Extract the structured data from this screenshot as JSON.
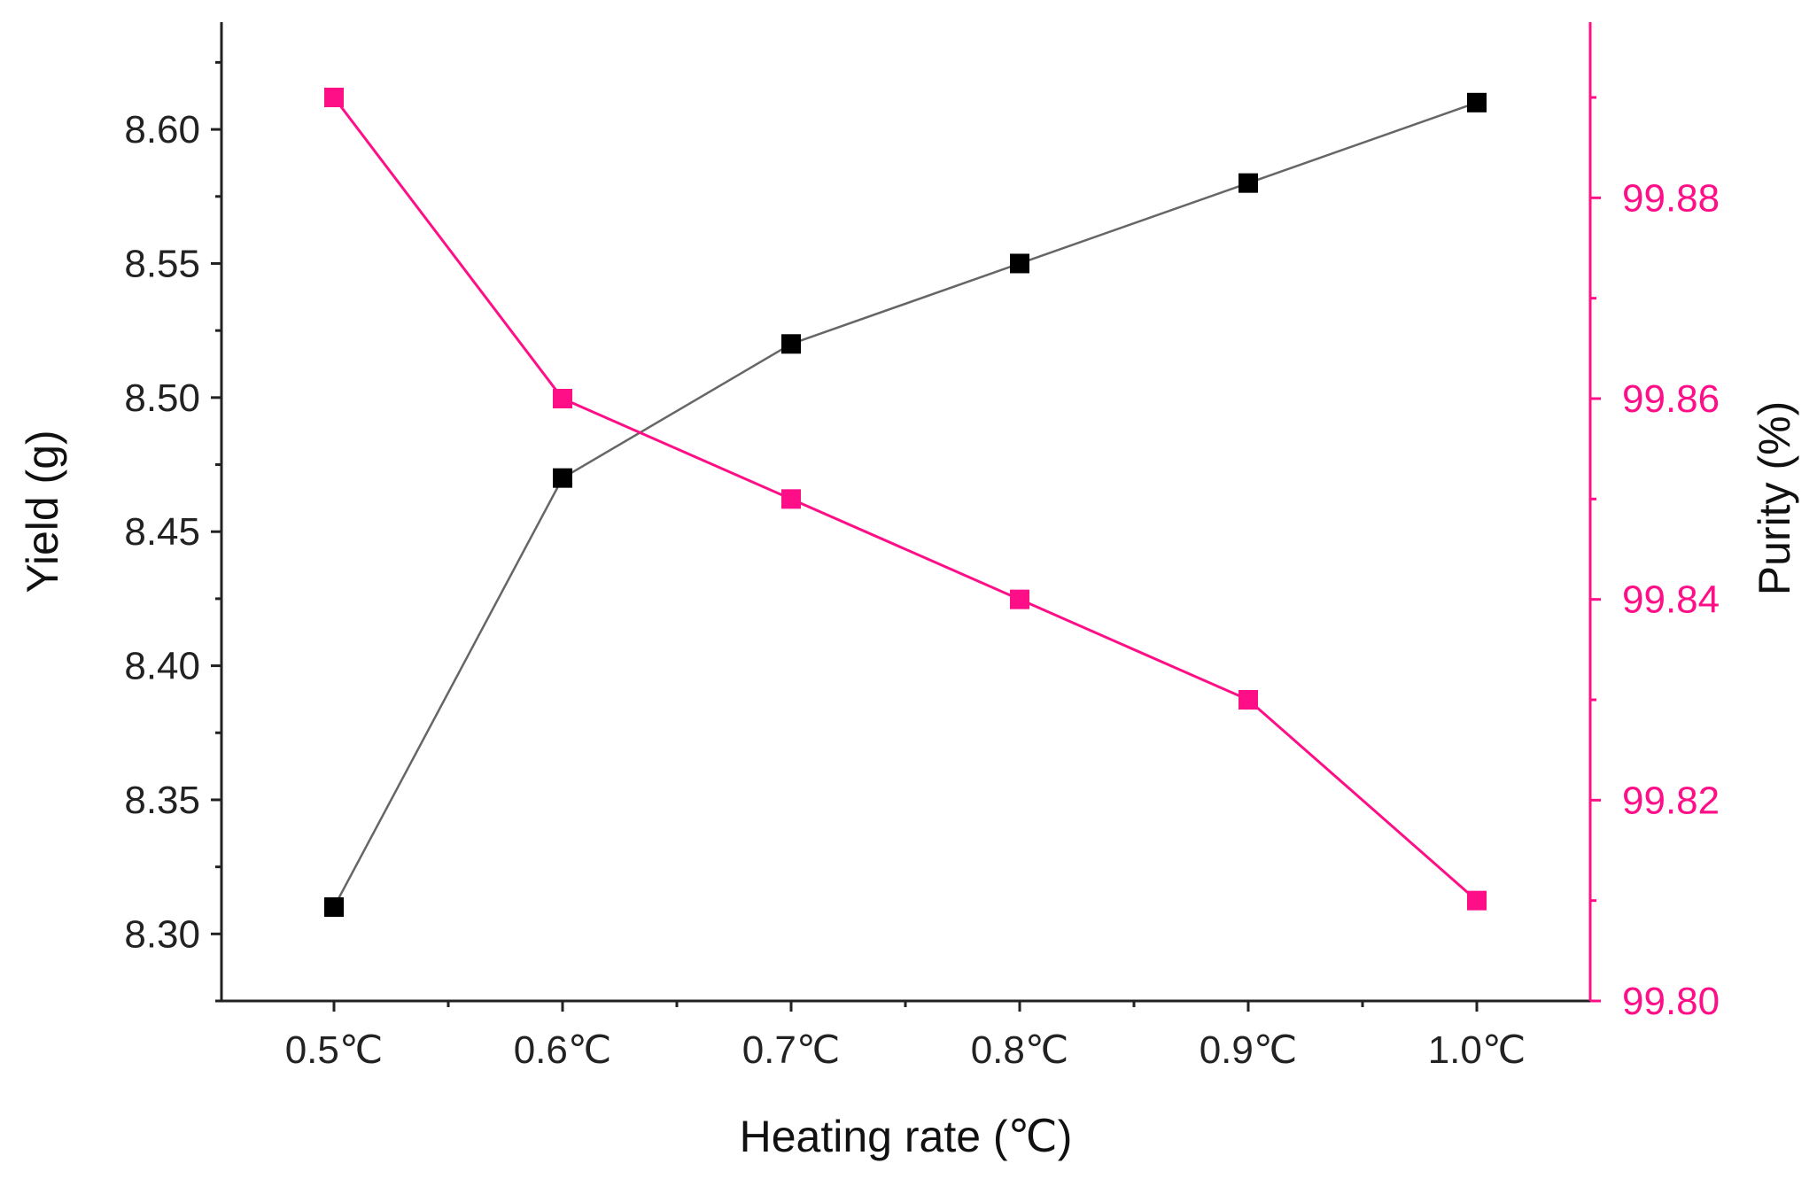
{
  "chart_data": {
    "type": "line",
    "title": "",
    "xlabel": "Heating rate (℃)",
    "ylabel_left": "Yield (g)",
    "ylabel_right": "Purity (%)",
    "categories": [
      "0.5℃",
      "0.6℃",
      "0.7℃",
      "0.8℃",
      "0.9℃",
      "1.0℃"
    ],
    "series": [
      {
        "name": "Yield",
        "axis": "left",
        "color": "#000000",
        "line_color": "#666666",
        "marker": "square",
        "values": [
          8.31,
          8.47,
          8.52,
          8.55,
          8.58,
          8.61
        ]
      },
      {
        "name": "Purity",
        "axis": "right",
        "color": "#ff0f87",
        "line_color": "#ff0f87",
        "marker": "square",
        "values": [
          99.89,
          99.86,
          99.85,
          99.84,
          99.83,
          99.81
        ]
      }
    ],
    "y_left": {
      "ticks": [
        "8.30",
        "8.35",
        "8.40",
        "8.45",
        "8.50",
        "8.55",
        "8.60"
      ],
      "ylim": [
        8.275,
        8.64
      ]
    },
    "y_right": {
      "ticks": [
        "99.80",
        "99.82",
        "99.84",
        "99.86",
        "99.88"
      ],
      "ylim": [
        99.8,
        99.8975
      ],
      "color": "#ff0f87"
    },
    "grid": false,
    "legend": "none"
  }
}
